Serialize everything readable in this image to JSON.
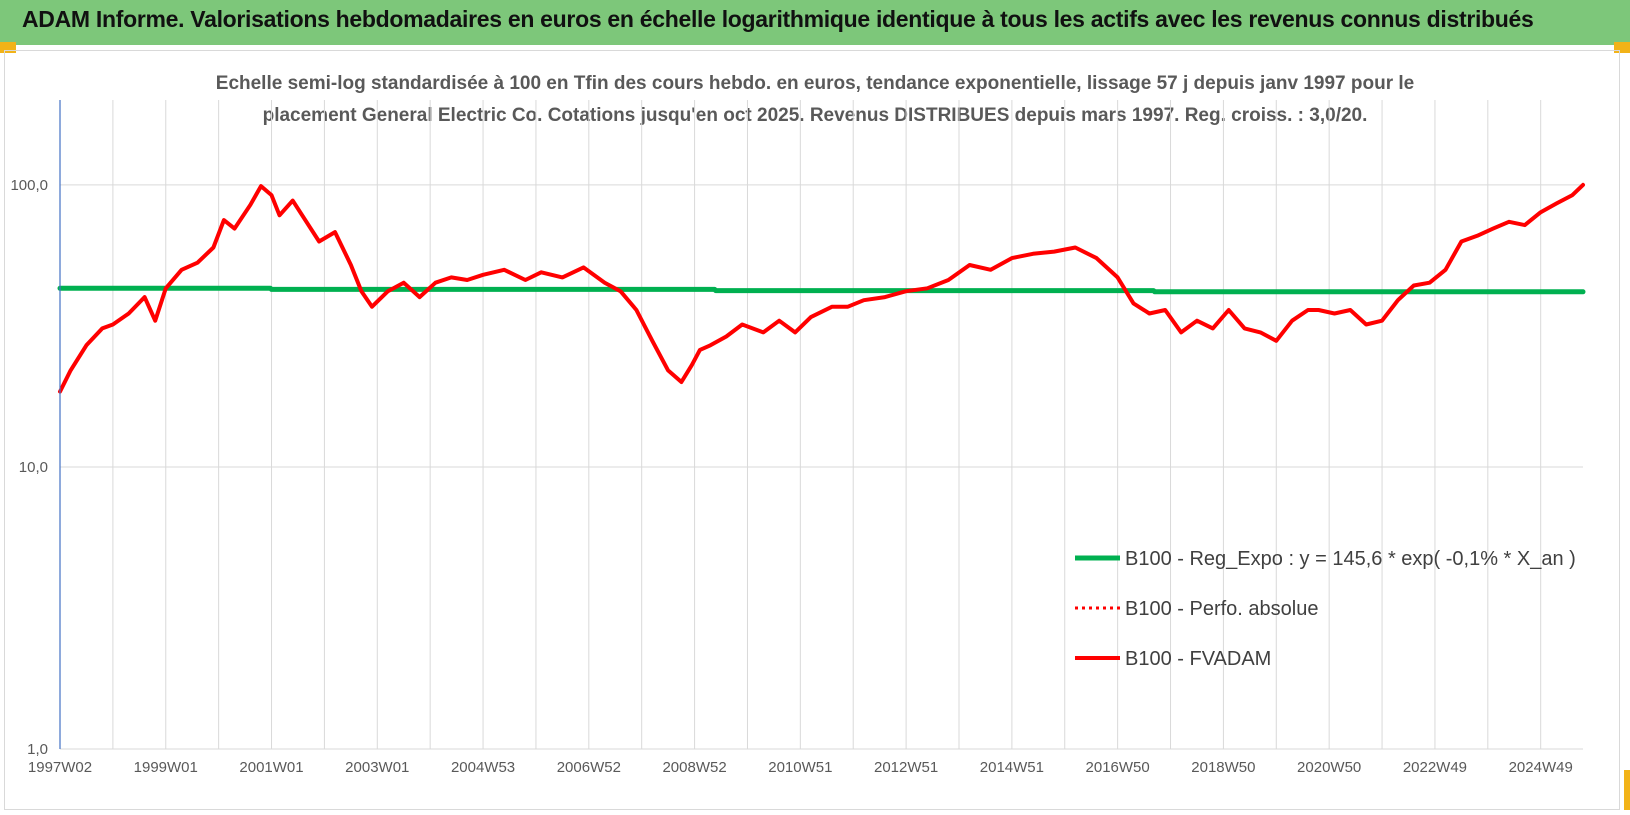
{
  "header": {
    "title": "ADAM Informe. Valorisations hebdomadaires en euros en échelle logarithmique identique à tous les actifs avec les revenus connus distribués"
  },
  "colors": {
    "banner": "#7dc77a",
    "corner_accent": "#f2b318",
    "regression": "#00b050",
    "perfo": "#ff0000",
    "fvadam": "#ff0000",
    "axis": "#4472c4",
    "grid": "#d9d9d9"
  },
  "chart_data": {
    "type": "line",
    "title": "Echelle semi-log standardisée à 100 en Tfin des cours hebdo. en euros, tendance exponentielle, lissage 57 j depuis janv 1997 pour le placement General Electric Co. Cotations jusqu'en oct 2025. Revenus DISTRIBUES depuis mars 1997. Reg. croiss. : 3,0/20.",
    "title_lines": [
      "Echelle semi-log standardisée à 100 en Tfin des cours hebdo. en euros, tendance exponentielle, lissage 57 j depuis janv 1997 pour le",
      "placement General Electric Co. Cotations jusqu'en oct 2025. Revenus DISTRIBUES depuis mars 1997. Reg. croiss. : 3,0/20."
    ],
    "y_scale": "log",
    "ylim": [
      1,
      200
    ],
    "xlim": [
      1997.0,
      2025.8
    ],
    "grid": true,
    "y_ticks": [
      {
        "value": 1,
        "label": "1,0"
      },
      {
        "value": 10,
        "label": "10,0"
      },
      {
        "value": 100,
        "label": "100,0"
      }
    ],
    "x_ticks": [
      {
        "value": 1997.0,
        "label": "1997W02"
      },
      {
        "value": 1999.0,
        "label": "1999W01"
      },
      {
        "value": 2001.0,
        "label": "2001W01"
      },
      {
        "value": 2003.0,
        "label": "2003W01"
      },
      {
        "value": 2005.0,
        "label": "2004W53"
      },
      {
        "value": 2007.0,
        "label": "2006W52"
      },
      {
        "value": 2009.0,
        "label": "2008W52"
      },
      {
        "value": 2011.0,
        "label": "2010W51"
      },
      {
        "value": 2013.0,
        "label": "2012W51"
      },
      {
        "value": 2015.0,
        "label": "2014W51"
      },
      {
        "value": 2017.0,
        "label": "2016W50"
      },
      {
        "value": 2019.0,
        "label": "2018W50"
      },
      {
        "value": 2021.0,
        "label": "2020W50"
      },
      {
        "value": 2023.0,
        "label": "2022W49"
      },
      {
        "value": 2025.0,
        "label": "2024W49"
      }
    ],
    "legend_position": "bottom-right",
    "series": [
      {
        "name": "B100 - Reg_Expo : y = 145,6 * exp( -0,1% *  X_an )",
        "style": "solid-green",
        "x": [
          1997.0,
          2000.98,
          2001.0,
          2009.38,
          2009.4,
          2017.68,
          2017.7,
          2025.8
        ],
        "y": [
          43.0,
          43.0,
          42.6,
          42.6,
          42.2,
          42.2,
          41.8,
          41.8
        ]
      },
      {
        "name": "B100 - Perfo. absolue",
        "style": "dotted-red",
        "x": [],
        "y": []
      },
      {
        "name": "B100 - FVADAM",
        "style": "solid-red",
        "x": [
          1997.0,
          1997.2,
          1997.5,
          1997.8,
          1998.0,
          1998.3,
          1998.6,
          1998.8,
          1999.0,
          1999.3,
          1999.6,
          1999.9,
          2000.1,
          2000.3,
          2000.6,
          2000.8,
          2001.0,
          2001.15,
          2001.4,
          2001.7,
          2001.9,
          2002.2,
          2002.5,
          2002.7,
          2002.9,
          2003.2,
          2003.5,
          2003.8,
          2004.1,
          2004.4,
          2004.7,
          2005.0,
          2005.4,
          2005.8,
          2006.1,
          2006.5,
          2006.9,
          2007.3,
          2007.6,
          2007.9,
          2008.2,
          2008.5,
          2008.75,
          2008.95,
          2009.1,
          2009.3,
          2009.6,
          2009.9,
          2010.3,
          2010.6,
          2010.9,
          2011.2,
          2011.6,
          2011.9,
          2012.2,
          2012.6,
          2013.0,
          2013.4,
          2013.8,
          2014.2,
          2014.6,
          2015.0,
          2015.4,
          2015.8,
          2016.2,
          2016.6,
          2017.0,
          2017.3,
          2017.6,
          2017.9,
          2018.2,
          2018.5,
          2018.8,
          2019.1,
          2019.4,
          2019.7,
          2020.0,
          2020.3,
          2020.6,
          2020.8,
          2021.1,
          2021.4,
          2021.7,
          2022.0,
          2022.3,
          2022.6,
          2022.9,
          2023.2,
          2023.5,
          2023.8,
          2024.1,
          2024.4,
          2024.7,
          2025.0,
          2025.3,
          2025.6,
          2025.8
        ],
        "y": [
          18.5,
          22.0,
          27.0,
          31.0,
          32.0,
          35.0,
          40.0,
          33.0,
          43.0,
          50.0,
          53.0,
          60.0,
          75.0,
          70.0,
          85.0,
          99.0,
          92.0,
          78.0,
          88.0,
          72.0,
          63.0,
          68.0,
          52.0,
          42.0,
          37.0,
          42.0,
          45.0,
          40.0,
          45.0,
          47.0,
          46.0,
          48.0,
          50.0,
          46.0,
          49.0,
          47.0,
          51.0,
          45.0,
          42.0,
          36.0,
          28.0,
          22.0,
          20.0,
          23.0,
          26.0,
          27.0,
          29.0,
          32.0,
          30.0,
          33.0,
          30.0,
          34.0,
          37.0,
          37.0,
          39.0,
          40.0,
          42.0,
          43.0,
          46.0,
          52.0,
          50.0,
          55.0,
          57.0,
          58.0,
          60.0,
          55.0,
          47.0,
          38.0,
          35.0,
          36.0,
          30.0,
          33.0,
          31.0,
          36.0,
          31.0,
          30.0,
          28.0,
          33.0,
          36.0,
          36.0,
          35.0,
          36.0,
          32.0,
          33.0,
          39.0,
          44.0,
          45.0,
          50.0,
          63.0,
          66.0,
          70.0,
          74.0,
          72.0,
          80.0,
          86.0,
          92.0,
          100.0
        ]
      }
    ]
  }
}
